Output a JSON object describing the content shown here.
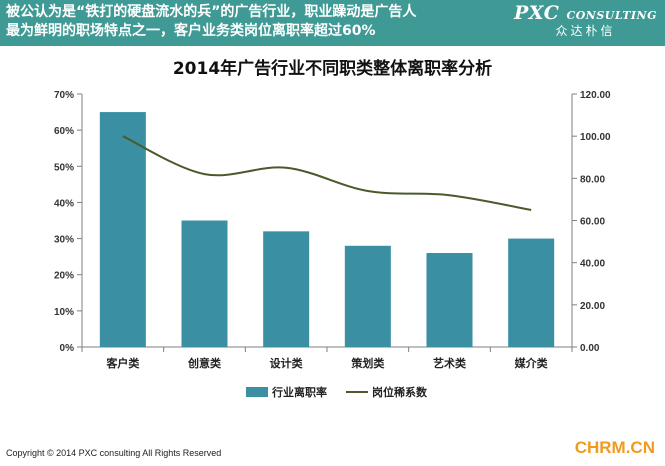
{
  "header": {
    "headline_line1": "被公认为是“铁打的硬盘流水的兵”的广告行业，职业躁动是广告人",
    "headline_line2": "最为鲜明的职场特点之一，客户业务类岗位离职率超过60%",
    "brand_logo": "PXC",
    "brand_logo_sub": "CONSULTING",
    "brand_cn": "众达朴信"
  },
  "chart_data": {
    "type": "bar",
    "title": "2014年广告行业不同职类整体离职率分析",
    "categories": [
      "客户类",
      "创意类",
      "设计类",
      "策划类",
      "艺术类",
      "媒介类"
    ],
    "series": [
      {
        "name": "行业离职率",
        "type": "bar",
        "axis": "left",
        "values": [
          65,
          35,
          32,
          28,
          26,
          30
        ],
        "color": "#3a8fa3"
      },
      {
        "name": "岗位稀系数",
        "type": "line",
        "axis": "right",
        "values": [
          100,
          82,
          85,
          74,
          72,
          65
        ],
        "color": "#4a5a2a"
      }
    ],
    "y_left": {
      "min": 0,
      "max": 70,
      "ticks": [
        "0%",
        "10%",
        "20%",
        "30%",
        "40%",
        "50%",
        "60%",
        "70%"
      ]
    },
    "y_right": {
      "min": 0,
      "max": 120,
      "ticks": [
        "0.00",
        "20.00",
        "40.00",
        "60.00",
        "80.00",
        "100.00",
        "120.00"
      ]
    },
    "legend_position": "bottom",
    "grid": false
  },
  "footer": {
    "copyright": "Copyright © 2014  PXC consulting All Rights Reserved",
    "watermark": "CHRM.CN"
  }
}
